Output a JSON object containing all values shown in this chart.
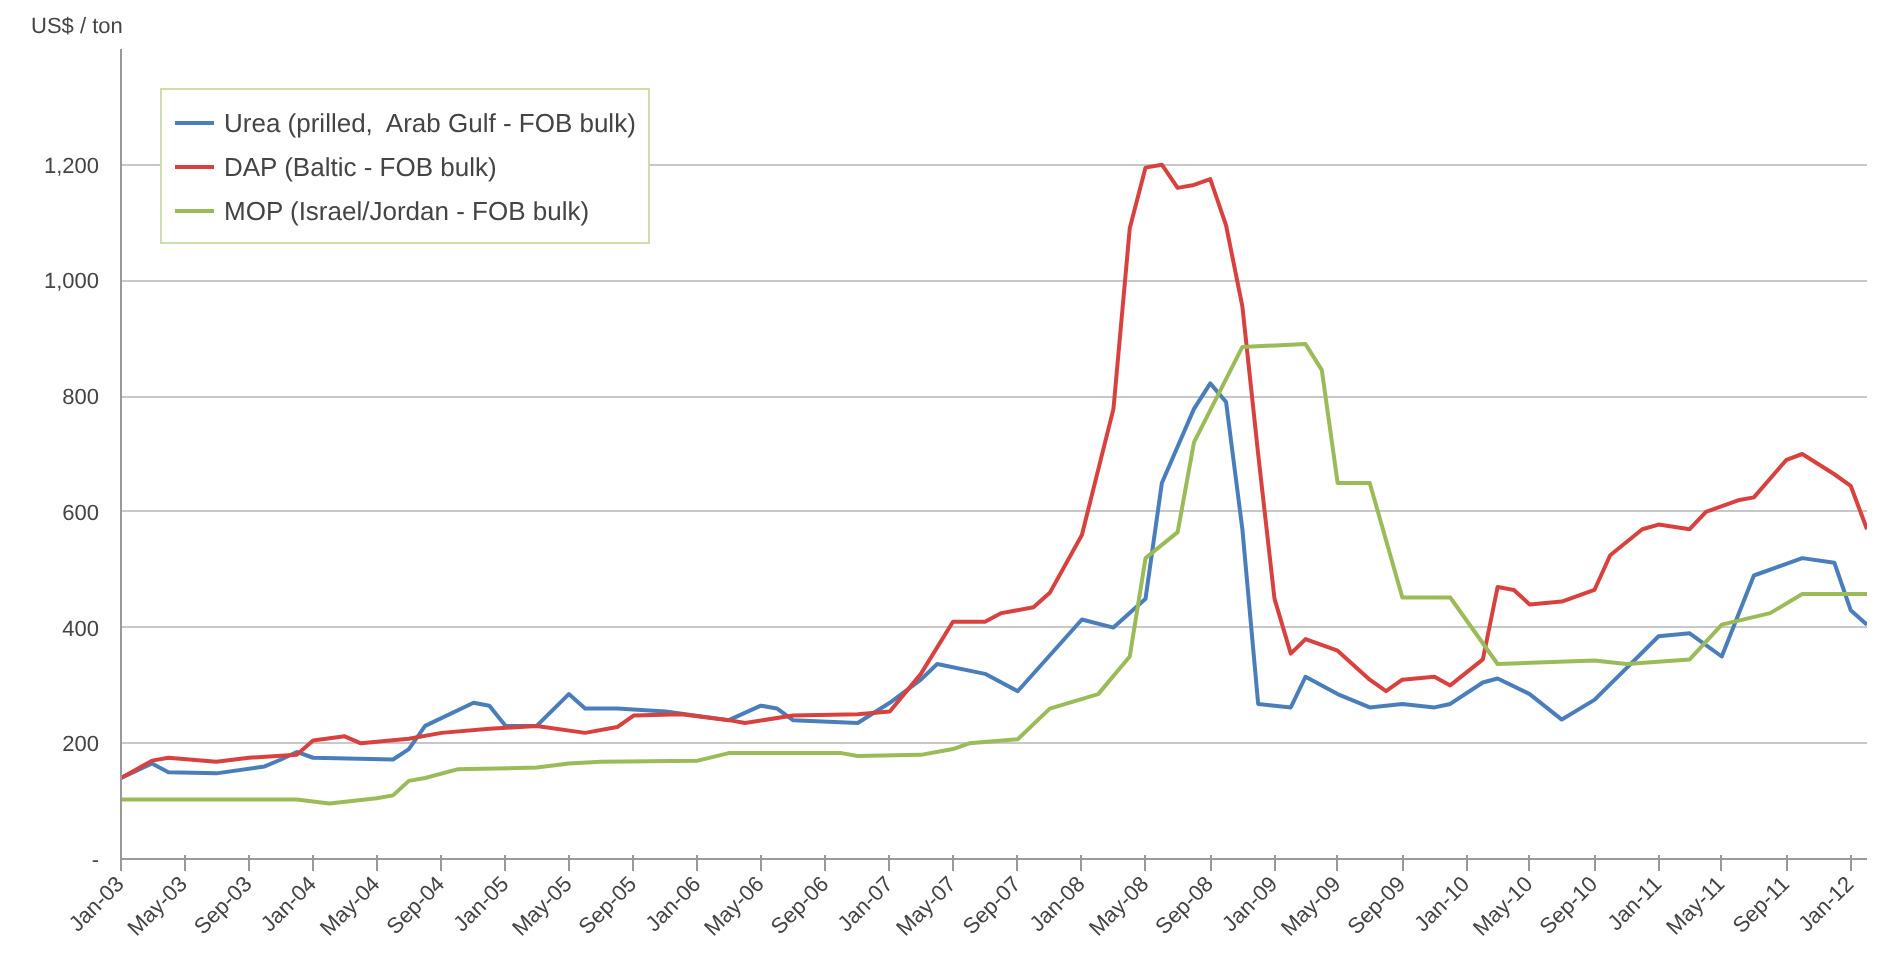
{
  "chart_data": {
    "type": "line",
    "ylabel": "US$ / ton",
    "xlim": [
      "2003-01",
      "2012-02"
    ],
    "ylim": [
      0,
      1400
    ],
    "yticks": [
      {
        "value": 0,
        "label": "-"
      },
      200,
      400,
      600,
      800,
      {
        "value": 1000,
        "label": "1,000"
      },
      {
        "value": 1200,
        "label": "1,200"
      }
    ],
    "xticks": [
      {
        "value": "2003-01",
        "label": "Jan-03"
      },
      {
        "value": "2003-05",
        "label": "May-03"
      },
      {
        "value": "2003-09",
        "label": "Sep-03"
      },
      {
        "value": "2004-01",
        "label": "Jan-04"
      },
      {
        "value": "2004-05",
        "label": "May-04"
      },
      {
        "value": "2004-09",
        "label": "Sep-04"
      },
      {
        "value": "2005-01",
        "label": "Jan-05"
      },
      {
        "value": "2005-05",
        "label": "May-05"
      },
      {
        "value": "2005-09",
        "label": "Sep-05"
      },
      {
        "value": "2006-01",
        "label": "Jan-06"
      },
      {
        "value": "2006-05",
        "label": "May-06"
      },
      {
        "value": "2006-09",
        "label": "Sep-06"
      },
      {
        "value": "2007-01",
        "label": "Jan-07"
      },
      {
        "value": "2007-05",
        "label": "May-07"
      },
      {
        "value": "2007-09",
        "label": "Sep-07"
      },
      {
        "value": "2008-01",
        "label": "Jan-08"
      },
      {
        "value": "2008-05",
        "label": "May-08"
      },
      {
        "value": "2008-09",
        "label": "Sep-08"
      },
      {
        "value": "2009-01",
        "label": "Jan-09"
      },
      {
        "value": "2009-05",
        "label": "May-09"
      },
      {
        "value": "2009-09",
        "label": "Sep-09"
      },
      {
        "value": "2010-01",
        "label": "Jan-10"
      },
      {
        "value": "2010-05",
        "label": "May-10"
      },
      {
        "value": "2010-09",
        "label": "Sep-10"
      },
      {
        "value": "2011-01",
        "label": "Jan-11"
      },
      {
        "value": "2011-05",
        "label": "May-11"
      },
      {
        "value": "2011-09",
        "label": "Sep-11"
      },
      {
        "value": "2012-01",
        "label": "Jan-12"
      }
    ],
    "grid": "y",
    "legend": "top left",
    "marker": "none",
    "line_style": "solid",
    "series": [
      {
        "name": "Urea (prilled,  Arab Gulf - FOB bulk)",
        "color": "#4a7ebb",
        "x": [
          "2003-01",
          "2003-03",
          "2003-04",
          "2003-07",
          "2003-10",
          "2003-11",
          "2003-12",
          "2004-01",
          "2004-06",
          "2004-07",
          "2004-08",
          "2004-11",
          "2004-12",
          "2005-01",
          "2005-03",
          "2005-05",
          "2005-06",
          "2005-08",
          "2005-11",
          "2006-03",
          "2006-05",
          "2006-06",
          "2006-07",
          "2006-11",
          "2007-01",
          "2007-03",
          "2007-04",
          "2007-07",
          "2007-09",
          "2008-01",
          "2008-03",
          "2008-05",
          "2008-06",
          "2008-08",
          "2008-09",
          "2008-10",
          "2008-11",
          "2008-12",
          "2009-02",
          "2009-03",
          "2009-05",
          "2009-07",
          "2009-09",
          "2009-11",
          "2009-12",
          "2010-02",
          "2010-03",
          "2010-05",
          "2010-07",
          "2010-09",
          "2010-11",
          "2011-01",
          "2011-03",
          "2011-05",
          "2011-07",
          "2011-10",
          "2011-12",
          "2012-01",
          "2012-02"
        ],
        "values": [
          140,
          165,
          150,
          148,
          160,
          172,
          185,
          175,
          172,
          190,
          230,
          270,
          265,
          230,
          230,
          285,
          260,
          260,
          255,
          240,
          265,
          260,
          240,
          235,
          270,
          310,
          337,
          320,
          290,
          414,
          400,
          450,
          650,
          778,
          822,
          790,
          570,
          268,
          262,
          315,
          285,
          262,
          268,
          262,
          268,
          305,
          312,
          285,
          241,
          275,
          330,
          385,
          390,
          350,
          490,
          520,
          512,
          430,
          405
        ]
      },
      {
        "name": "DAP (Baltic - FOB bulk)",
        "color": "#d9413f",
        "x": [
          "2003-01",
          "2003-03",
          "2003-04",
          "2003-07",
          "2003-09",
          "2003-12",
          "2004-01",
          "2004-03",
          "2004-04",
          "2004-07",
          "2004-09",
          "2004-12",
          "2005-03",
          "2005-06",
          "2005-08",
          "2005-09",
          "2005-12",
          "2006-03",
          "2006-04",
          "2006-07",
          "2006-11",
          "2007-01",
          "2007-03",
          "2007-05",
          "2007-07",
          "2007-08",
          "2007-10",
          "2007-11",
          "2008-01",
          "2008-03",
          "2008-04",
          "2008-05",
          "2008-06",
          "2008-07",
          "2008-08",
          "2008-09",
          "2008-10",
          "2008-11",
          "2008-12",
          "2009-01",
          "2009-02",
          "2009-03",
          "2009-05",
          "2009-07",
          "2009-08",
          "2009-09",
          "2009-11",
          "2009-12",
          "2010-02",
          "2010-03",
          "2010-04",
          "2010-05",
          "2010-07",
          "2010-09",
          "2010-10",
          "2010-12",
          "2011-01",
          "2011-03",
          "2011-04",
          "2011-06",
          "2011-07",
          "2011-09",
          "2011-10",
          "2011-12",
          "2012-01",
          "2012-02"
        ],
        "values": [
          140,
          170,
          175,
          168,
          175,
          180,
          205,
          212,
          200,
          208,
          218,
          225,
          230,
          218,
          228,
          248,
          250,
          240,
          235,
          248,
          250,
          255,
          320,
          410,
          410,
          425,
          435,
          460,
          560,
          778,
          1090,
          1195,
          1200,
          1160,
          1165,
          1175,
          1095,
          955,
          700,
          450,
          355,
          380,
          360,
          310,
          290,
          310,
          315,
          300,
          345,
          470,
          465,
          440,
          445,
          465,
          525,
          570,
          578,
          570,
          600,
          620,
          625,
          690,
          700,
          665,
          645,
          570
        ]
      },
      {
        "name": "MOP (Israel/Jordan - FOB bulk)",
        "color": "#9bbb59",
        "x": [
          "2003-01",
          "2003-12",
          "2004-02",
          "2004-05",
          "2004-06",
          "2004-07",
          "2004-08",
          "2004-10",
          "2005-03",
          "2005-05",
          "2005-07",
          "2006-01",
          "2006-03",
          "2006-10",
          "2006-11",
          "2007-03",
          "2007-05",
          "2007-06",
          "2007-09",
          "2007-11",
          "2008-02",
          "2008-04",
          "2008-05",
          "2008-07",
          "2008-08",
          "2008-11",
          "2009-03",
          "2009-04",
          "2009-05",
          "2009-07",
          "2009-09",
          "2009-12",
          "2010-03",
          "2010-09",
          "2010-11",
          "2011-03",
          "2011-05",
          "2011-08",
          "2011-10",
          "2012-02"
        ],
        "values": [
          103,
          103,
          96,
          105,
          110,
          135,
          140,
          155,
          158,
          165,
          168,
          170,
          183,
          183,
          178,
          180,
          190,
          200,
          207,
          260,
          285,
          350,
          520,
          565,
          720,
          885,
          890,
          845,
          650,
          650,
          452,
          452,
          337,
          343,
          337,
          345,
          405,
          425,
          458,
          458
        ]
      }
    ]
  }
}
